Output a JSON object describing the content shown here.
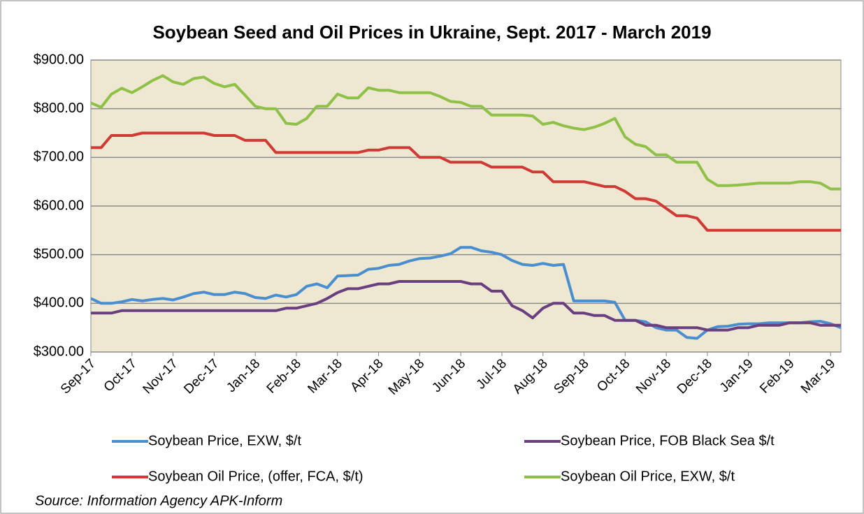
{
  "chart_data": {
    "type": "line",
    "title": "Soybean Seed and Oil Prices in Ukraine, Sept. 2017 - March 2019",
    "source": "Source:  Information  Agency  APK-Inform",
    "categories": [
      "Sep-17",
      null,
      null,
      null,
      "Oct-17",
      null,
      null,
      null,
      "Nov-17",
      null,
      null,
      null,
      "Dec-17",
      null,
      null,
      null,
      "Jan-18",
      null,
      null,
      null,
      "Feb-18",
      null,
      null,
      null,
      "Mar-18",
      null,
      null,
      null,
      "Apr-18",
      null,
      null,
      null,
      "May-18",
      null,
      null,
      null,
      "Jun-18",
      null,
      null,
      null,
      "Jul-18",
      null,
      null,
      null,
      "Aug-18",
      null,
      null,
      null,
      "Sep-18",
      null,
      null,
      null,
      "Oct-18",
      null,
      null,
      null,
      "Nov-18",
      null,
      null,
      null,
      "Dec-18",
      null,
      null,
      null,
      "Jan-19",
      null,
      null,
      null,
      "Feb-19",
      null,
      null,
      null,
      "Mar-19",
      null
    ],
    "series": [
      {
        "name": "Soybean Price, EXW, $/t",
        "color": "#4a8ed0",
        "values": [
          410,
          400,
          400,
          403,
          408,
          405,
          408,
          410,
          407,
          413,
          420,
          423,
          418,
          418,
          423,
          420,
          412,
          410,
          417,
          413,
          418,
          435,
          440,
          432,
          456,
          457,
          458,
          470,
          472,
          478,
          480,
          487,
          492,
          493,
          497,
          502,
          515,
          515,
          508,
          505,
          500,
          488,
          480,
          478,
          482,
          478,
          480,
          405,
          405,
          405,
          405,
          402,
          365,
          365,
          362,
          350,
          345,
          345,
          330,
          328,
          345,
          352,
          353,
          357,
          358,
          358,
          360,
          360,
          360,
          360,
          362,
          363,
          358,
          350
        ]
      },
      {
        "name": "Soybean Price, FOB Black Sea $/t",
        "color": "#6a3f80",
        "values": [
          380,
          380,
          380,
          385,
          385,
          385,
          385,
          385,
          385,
          385,
          385,
          385,
          385,
          385,
          385,
          385,
          385,
          385,
          385,
          390,
          390,
          395,
          400,
          410,
          422,
          430,
          430,
          435,
          440,
          440,
          445,
          445,
          445,
          445,
          445,
          445,
          445,
          440,
          440,
          425,
          425,
          395,
          385,
          370,
          390,
          400,
          400,
          380,
          380,
          375,
          375,
          365,
          365,
          365,
          355,
          355,
          350,
          350,
          350,
          350,
          345,
          345,
          345,
          350,
          350,
          355,
          355,
          355,
          360,
          360,
          360,
          355,
          355,
          355
        ]
      },
      {
        "name": "Soybean Oil Price, (offer, FCA, $/t)",
        "color": "#d03a35",
        "values": [
          720,
          720,
          745,
          745,
          745,
          750,
          750,
          750,
          750,
          750,
          750,
          750,
          745,
          745,
          745,
          735,
          735,
          735,
          710,
          710,
          710,
          710,
          710,
          710,
          710,
          710,
          710,
          715,
          715,
          720,
          720,
          720,
          700,
          700,
          700,
          690,
          690,
          690,
          690,
          680,
          680,
          680,
          680,
          670,
          670,
          650,
          650,
          650,
          650,
          645,
          640,
          640,
          630,
          615,
          615,
          610,
          595,
          580,
          580,
          575,
          550,
          550,
          550,
          550,
          550,
          550,
          550,
          550,
          550,
          550,
          550,
          550,
          550,
          550
        ]
      },
      {
        "name": "Soybean Oil Price, EXW, $/t",
        "color": "#8fc047",
        "values": [
          812,
          803,
          830,
          842,
          833,
          845,
          858,
          868,
          855,
          850,
          862,
          865,
          852,
          845,
          850,
          828,
          805,
          800,
          800,
          770,
          768,
          780,
          805,
          805,
          830,
          822,
          822,
          843,
          838,
          838,
          833,
          833,
          833,
          833,
          825,
          815,
          813,
          805,
          805,
          787,
          787,
          787,
          787,
          785,
          768,
          772,
          765,
          760,
          757,
          762,
          770,
          780,
          742,
          727,
          722,
          705,
          705,
          690,
          690,
          690,
          655,
          642,
          642,
          643,
          645,
          647,
          647,
          647,
          647,
          650,
          650,
          647,
          635,
          635
        ]
      }
    ],
    "ylim": [
      300,
      900
    ],
    "yticks": [
      {
        "value": 300,
        "label": "$300.00"
      },
      {
        "value": 400,
        "label": "$400.00"
      },
      {
        "value": 500,
        "label": "$500.00"
      },
      {
        "value": 600,
        "label": "$600.00"
      },
      {
        "value": 700,
        "label": "$700.00"
      },
      {
        "value": 800,
        "label": "$800.00"
      },
      {
        "value": 900,
        "label": "$900.00"
      }
    ],
    "grid": true,
    "legend": "bottom",
    "plot_background": "#eee8d2"
  }
}
